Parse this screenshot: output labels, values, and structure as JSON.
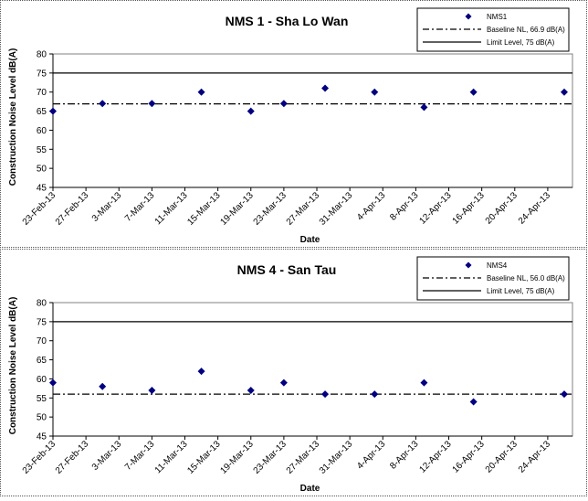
{
  "chart_data": [
    {
      "type": "scatter",
      "title": "NMS 1 - Sha Lo Wan",
      "xlabel": "Date",
      "ylabel": "Construction Noise Level  dB(A)",
      "ylim": [
        45,
        80
      ],
      "yticks": [
        "45",
        "50",
        "55",
        "60",
        "65",
        "70",
        "75",
        "80"
      ],
      "xlim": [
        "2013-02-23",
        "2013-04-27"
      ],
      "xtick_labels": [
        "23-Feb-13",
        "27-Feb-13",
        "3-Mar-13",
        "7-Mar-13",
        "11-Mar-13",
        "15-Mar-13",
        "19-Mar-13",
        "23-Mar-13",
        "27-Mar-13",
        "31-Mar-13",
        "4-Apr-13",
        "8-Apr-13",
        "12-Apr-13",
        "16-Apr-13",
        "20-Apr-13",
        "24-Apr-13"
      ],
      "legend": [
        "NMS1",
        "Baseline NL, 66.9 dB(A)",
        "Limit Level, 75 dB(A)"
      ],
      "legend_position": "top-right",
      "grid": false,
      "colors": {
        "marker": "#000080",
        "line": "#000000"
      },
      "series": [
        {
          "name": "NMS1",
          "x": [
            "2013-02-23",
            "2013-03-01",
            "2013-03-07",
            "2013-03-13",
            "2013-03-19",
            "2013-03-23",
            "2013-03-28",
            "2013-04-03",
            "2013-04-09",
            "2013-04-15",
            "2013-04-26"
          ],
          "y": [
            65,
            67,
            67,
            70,
            65,
            67,
            71,
            70,
            66,
            70,
            70
          ]
        }
      ],
      "hlines": [
        {
          "label": "Baseline NL, 66.9 dB(A)",
          "y": 66.9,
          "style": "dashdot"
        },
        {
          "label": "Limit Level, 75 dB(A)",
          "y": 75,
          "style": "solid"
        }
      ]
    },
    {
      "type": "scatter",
      "title": "NMS 4 - San Tau",
      "xlabel": "Date",
      "ylabel": "Construction Noise Level  dB(A)",
      "ylim": [
        45,
        80
      ],
      "yticks": [
        "45",
        "50",
        "55",
        "60",
        "65",
        "70",
        "75",
        "80"
      ],
      "xlim": [
        "2013-02-23",
        "2013-04-27"
      ],
      "xtick_labels": [
        "23-Feb-13",
        "27-Feb-13",
        "3-Mar-13",
        "7-Mar-13",
        "11-Mar-13",
        "15-Mar-13",
        "19-Mar-13",
        "23-Mar-13",
        "27-Mar-13",
        "31-Mar-13",
        "4-Apr-13",
        "8-Apr-13",
        "12-Apr-13",
        "16-Apr-13",
        "20-Apr-13",
        "24-Apr-13"
      ],
      "legend": [
        "NMS4",
        "Baseline NL, 56.0 dB(A)",
        "Limit Level, 75 dB(A)"
      ],
      "legend_position": "top-right",
      "grid": false,
      "colors": {
        "marker": "#000080",
        "line": "#000000"
      },
      "series": [
        {
          "name": "NMS4",
          "x": [
            "2013-02-23",
            "2013-03-01",
            "2013-03-07",
            "2013-03-13",
            "2013-03-19",
            "2013-03-23",
            "2013-03-28",
            "2013-04-03",
            "2013-04-09",
            "2013-04-15",
            "2013-04-26"
          ],
          "y": [
            59,
            58,
            57,
            62,
            57,
            59,
            56,
            56,
            59,
            54,
            56
          ]
        }
      ],
      "hlines": [
        {
          "label": "Baseline NL, 56.0 dB(A)",
          "y": 56.0,
          "style": "dashdot"
        },
        {
          "label": "Limit Level, 75 dB(A)",
          "y": 75,
          "style": "solid"
        }
      ]
    }
  ]
}
